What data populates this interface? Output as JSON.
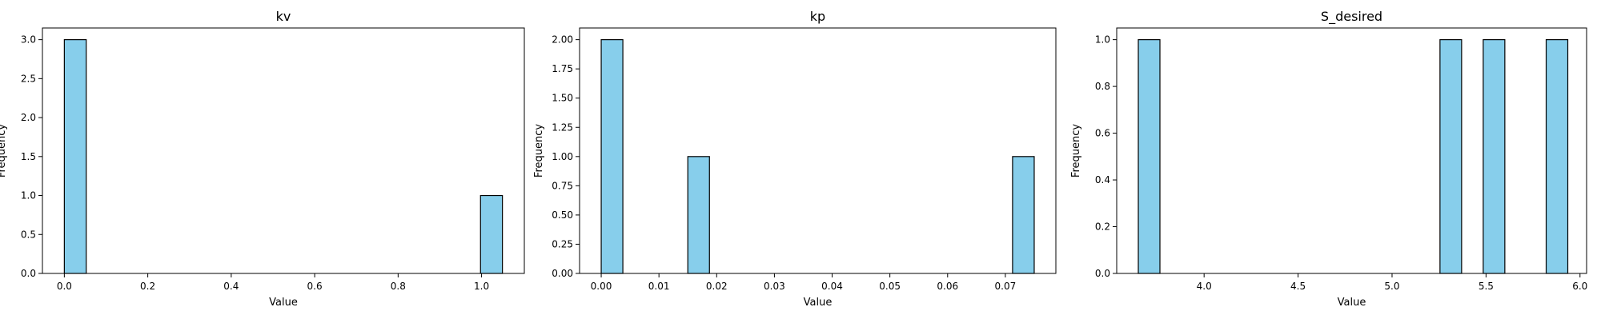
{
  "chart_data": [
    {
      "type": "bar",
      "title": "kv",
      "xlabel": "Value",
      "ylabel": "Frequency",
      "xlim": [
        -0.0525,
        1.1025
      ],
      "ylim": [
        0,
        3.15
      ],
      "xticks": [
        0.0,
        0.2,
        0.4,
        0.6,
        0.8,
        1.0
      ],
      "xtick_labels": [
        "0.0",
        "0.2",
        "0.4",
        "0.6",
        "0.8",
        "1.0"
      ],
      "yticks": [
        0.0,
        0.5,
        1.0,
        1.5,
        2.0,
        2.5,
        3.0
      ],
      "ytick_labels": [
        "0.0",
        "0.5",
        "1.0",
        "1.5",
        "2.0",
        "2.5",
        "3.0"
      ],
      "bins": [
        {
          "x0": 0.0,
          "x1": 0.0525,
          "count": 3
        },
        {
          "x0": 0.9975,
          "x1": 1.05,
          "count": 1
        }
      ],
      "color": "#87ceeb",
      "edgecolor": "#000000",
      "grid": false
    },
    {
      "type": "bar",
      "title": "kp",
      "xlabel": "Value",
      "ylabel": "Frequency",
      "xlim": [
        -0.00375,
        0.07875
      ],
      "ylim": [
        0,
        2.1
      ],
      "xticks": [
        0.0,
        0.01,
        0.02,
        0.03,
        0.04,
        0.05,
        0.06,
        0.07
      ],
      "xtick_labels": [
        "0.00",
        "0.01",
        "0.02",
        "0.03",
        "0.04",
        "0.05",
        "0.06",
        "0.07"
      ],
      "yticks": [
        0.0,
        0.25,
        0.5,
        0.75,
        1.0,
        1.25,
        1.5,
        1.75,
        2.0
      ],
      "ytick_labels": [
        "0.00",
        "0.25",
        "0.50",
        "0.75",
        "1.00",
        "1.25",
        "1.50",
        "1.75",
        "2.00"
      ],
      "bins": [
        {
          "x0": 0.0,
          "x1": 0.00375,
          "count": 2
        },
        {
          "x0": 0.015,
          "x1": 0.01875,
          "count": 1
        },
        {
          "x0": 0.07125,
          "x1": 0.075,
          "count": 1
        }
      ],
      "color": "#87ceeb",
      "edgecolor": "#000000",
      "grid": false
    },
    {
      "type": "bar",
      "title": "S_desired",
      "xlabel": "Value",
      "ylabel": "Frequency",
      "xlim": [
        3.535,
        6.035
      ],
      "ylim": [
        0,
        1.05
      ],
      "xticks": [
        4.0,
        4.5,
        5.0,
        5.5,
        6.0
      ],
      "xtick_labels": [
        "4.0",
        "4.5",
        "5.0",
        "5.5",
        "6.0"
      ],
      "yticks": [
        0.0,
        0.2,
        0.4,
        0.6,
        0.8,
        1.0
      ],
      "ytick_labels": [
        "0.0",
        "0.2",
        "0.4",
        "0.6",
        "0.8",
        "1.0"
      ],
      "bins": [
        {
          "x0": 3.65,
          "x1": 3.765,
          "count": 1
        },
        {
          "x0": 5.255,
          "x1": 5.37,
          "count": 1
        },
        {
          "x0": 5.485,
          "x1": 5.6,
          "count": 1
        },
        {
          "x0": 5.82,
          "x1": 5.935,
          "count": 1
        }
      ],
      "color": "#87ceeb",
      "edgecolor": "#000000",
      "grid": false
    }
  ]
}
